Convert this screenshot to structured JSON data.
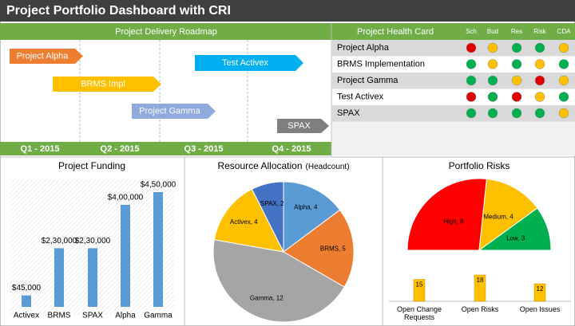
{
  "header": {
    "title": "Project Portfolio Dashboard with CRI"
  },
  "roadmap": {
    "title": "Project Delivery Roadmap",
    "quarters": [
      "Q1 - 2015",
      "Q2 - 2015",
      "Q3 - 2015",
      "Q4 - 2015"
    ],
    "tasks": [
      {
        "label": "Project Alpha",
        "color": "#ed7d31"
      },
      {
        "label": "BRMS Impl",
        "color": "#ffc000"
      },
      {
        "label": "Test Activex",
        "color": "#00b0f0"
      },
      {
        "label": "Project Gamma",
        "color": "#8faadc"
      },
      {
        "label": "SPAX",
        "color": "#7f7f7f"
      }
    ]
  },
  "health_card": {
    "title": "Project Health Card",
    "columns": [
      "Sch",
      "Bud",
      "Res",
      "Risk",
      "CDA"
    ],
    "rows": [
      {
        "name": "Project Alpha",
        "status": [
          "#e00000",
          "#ffc000",
          "#00b050",
          "#00b050",
          "#ffc000"
        ]
      },
      {
        "name": "BRMS Implementation",
        "status": [
          "#00b050",
          "#ffc000",
          "#00b050",
          "#ffc000",
          "#00b050"
        ]
      },
      {
        "name": "Project Gamma",
        "status": [
          "#00b050",
          "#00b050",
          "#ffc000",
          "#e00000",
          "#ffc000"
        ]
      },
      {
        "name": "Test Activex",
        "status": [
          "#e00000",
          "#00b050",
          "#e00000",
          "#ffc000",
          "#00b050"
        ]
      },
      {
        "name": "SPAX",
        "status": [
          "#00b050",
          "#00b050",
          "#00b050",
          "#00b050",
          "#ffc000"
        ]
      }
    ]
  },
  "chart_data": [
    {
      "type": "bar",
      "title": "Project Funding",
      "categories": [
        "Activex",
        "BRMS",
        "SPAX",
        "Alpha",
        "Gamma"
      ],
      "values": [
        45000,
        230000,
        230000,
        400000,
        450000
      ],
      "value_labels": [
        "$45,000",
        "$2,30,000",
        "$2,30,000",
        "$4,00,000",
        "$4,50,000"
      ],
      "color": "#5b9bd5"
    },
    {
      "type": "pie",
      "title": "Resource Allocation",
      "subtitle": "(Headcount)",
      "values": [
        4,
        5,
        12,
        4,
        2
      ],
      "value_labels": [
        "Alpha, 4",
        "BRMS, 5",
        "Gamma, 12",
        "Activex, 4",
        "SPAX, 2"
      ],
      "colors": [
        "#5b9bd5",
        "#ed7d31",
        "#a5a5a5",
        "#ffc000",
        "#4472c4"
      ]
    },
    {
      "type": "half-pie",
      "title": "Portfolio Risks",
      "values": [
        8,
        4,
        3
      ],
      "value_labels": [
        "High, 8",
        "Medium, 4",
        "Low, 3"
      ],
      "colors": [
        "#ff0000",
        "#ffc000",
        "#00b050"
      ]
    },
    {
      "type": "column",
      "categories": [
        "Open Change Requests",
        "Open Risks",
        "Open Issues"
      ],
      "values": [
        15,
        18,
        12
      ],
      "color": "#ffc000"
    }
  ]
}
